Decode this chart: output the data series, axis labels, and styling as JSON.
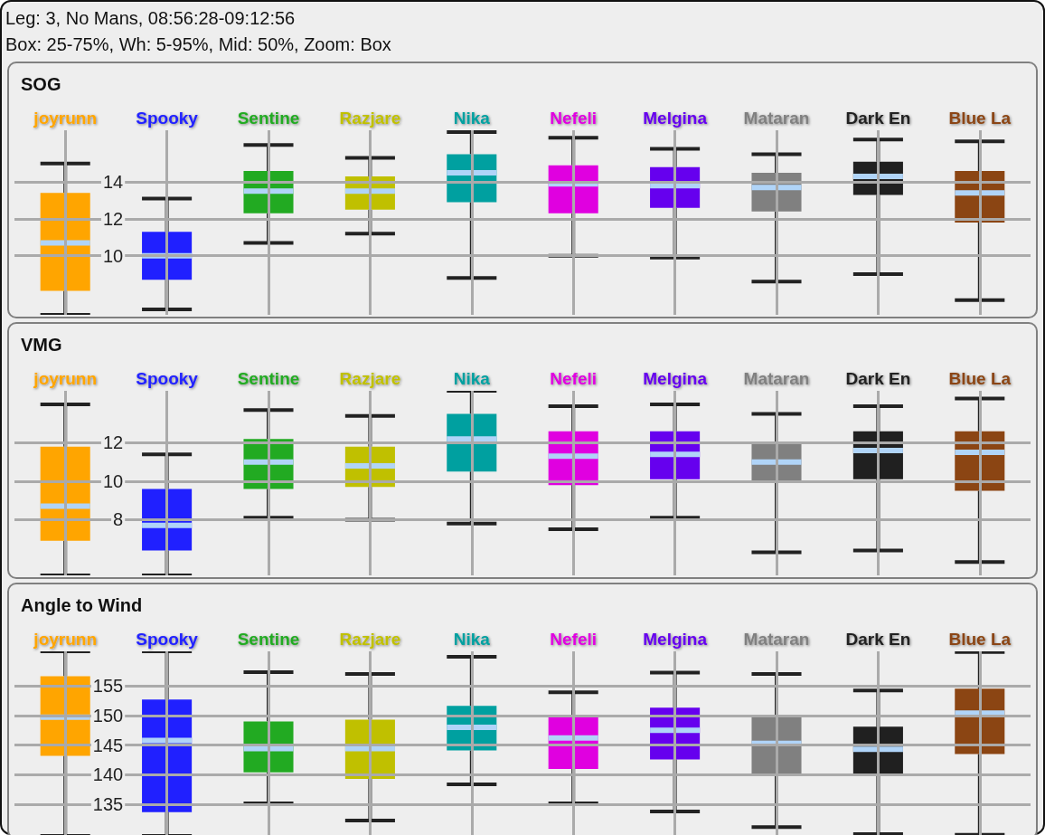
{
  "chart_data": [
    {
      "type": "box",
      "title": "SOG",
      "annotations": [
        "Leg: 3, No Mans, 08:56:28-09:12:56",
        "Box: 25-75%, Wh: 5-95%, Mid: 50%, Zoom: Box"
      ],
      "categories": [
        "joyrunn",
        "Spooky",
        "Sentine",
        "Razjare",
        "Nika",
        "Nefeli",
        "Melgina",
        "Mataran",
        "Dark En",
        "Blue La"
      ],
      "colors": [
        "#ffa500",
        "#2020ff",
        "#22aa22",
        "#c0c000",
        "#00a0a0",
        "#e000e0",
        "#6600ee",
        "#808080",
        "#202020",
        "#8b4513"
      ],
      "boxes": [
        {
          "low": 6.8,
          "q1": 8.1,
          "median": 10.7,
          "q3": 13.4,
          "high": 15.0
        },
        {
          "low": 7.1,
          "q1": 8.7,
          "median": 10.0,
          "q3": 11.3,
          "high": 13.1
        },
        {
          "low": 10.7,
          "q1": 12.3,
          "median": 13.5,
          "q3": 14.6,
          "high": 16.0
        },
        {
          "low": 11.2,
          "q1": 12.5,
          "median": 13.5,
          "q3": 14.3,
          "high": 15.3
        },
        {
          "low": 8.8,
          "q1": 12.9,
          "median": 14.5,
          "q3": 15.5,
          "high": 16.7
        },
        {
          "low": 10.0,
          "q1": 12.3,
          "median": 13.9,
          "q3": 14.9,
          "high": 16.4
        },
        {
          "low": 9.9,
          "q1": 12.6,
          "median": 13.8,
          "q3": 14.8,
          "high": 15.8
        },
        {
          "low": 8.6,
          "q1": 12.4,
          "median": 13.7,
          "q3": 14.5,
          "high": 15.5
        },
        {
          "low": 9.0,
          "q1": 13.3,
          "median": 14.3,
          "q3": 15.1,
          "high": 16.3
        },
        {
          "low": 7.6,
          "q1": 11.8,
          "median": 13.4,
          "q3": 14.6,
          "high": 16.2
        }
      ],
      "ylim": [
        6.8,
        16.8
      ],
      "yticks": [
        10,
        12,
        14
      ],
      "grid": true
    },
    {
      "type": "box",
      "title": "VMG",
      "categories": [
        "joyrunn",
        "Spooky",
        "Sentine",
        "Razjare",
        "Nika",
        "Nefeli",
        "Melgina",
        "Mataran",
        "Dark En",
        "Blue La"
      ],
      "colors": [
        "#ffa500",
        "#2020ff",
        "#22aa22",
        "#c0c000",
        "#00a0a0",
        "#e000e0",
        "#6600ee",
        "#808080",
        "#202020",
        "#8b4513"
      ],
      "boxes": [
        {
          "low": 5.1,
          "q1": 6.9,
          "median": 8.7,
          "q3": 11.8,
          "high": 14.0
        },
        {
          "low": 5.1,
          "q1": 6.4,
          "median": 7.7,
          "q3": 9.6,
          "high": 11.4
        },
        {
          "low": 8.1,
          "q1": 9.6,
          "median": 11.0,
          "q3": 12.2,
          "high": 13.7
        },
        {
          "low": 8.0,
          "q1": 9.7,
          "median": 10.8,
          "q3": 11.8,
          "high": 13.4
        },
        {
          "low": 7.8,
          "q1": 10.5,
          "median": 12.2,
          "q3": 13.5,
          "high": 14.7
        },
        {
          "low": 7.5,
          "q1": 9.8,
          "median": 11.3,
          "q3": 12.6,
          "high": 13.9
        },
        {
          "low": 8.1,
          "q1": 10.1,
          "median": 11.4,
          "q3": 12.6,
          "high": 14.0
        },
        {
          "low": 6.3,
          "q1": 9.9,
          "median": 11.0,
          "q3": 12.0,
          "high": 13.5
        },
        {
          "low": 6.4,
          "q1": 10.1,
          "median": 11.6,
          "q3": 12.6,
          "high": 13.9
        },
        {
          "low": 5.8,
          "q1": 9.5,
          "median": 11.5,
          "q3": 12.6,
          "high": 14.3
        }
      ],
      "ylim": [
        5.1,
        14.7
      ],
      "yticks": [
        8,
        10,
        12
      ],
      "grid": true
    },
    {
      "type": "box",
      "title": "Angle to Wind",
      "categories": [
        "joyrunn",
        "Spooky",
        "Sentine",
        "Razjare",
        "Nika",
        "Nefeli",
        "Melgina",
        "Mataran",
        "Dark En",
        "Blue La"
      ],
      "colors": [
        "#ffa500",
        "#2020ff",
        "#22aa22",
        "#c0c000",
        "#00a0a0",
        "#e000e0",
        "#6600ee",
        "#808080",
        "#202020",
        "#8b4513"
      ],
      "boxes": [
        {
          "low": 129.7,
          "q1": 143.2,
          "median": 149.7,
          "q3": 156.6,
          "high": 160.8
        },
        {
          "low": 129.7,
          "q1": 133.7,
          "median": 145.8,
          "q3": 152.7,
          "high": 160.8
        },
        {
          "low": 135.2,
          "q1": 140.4,
          "median": 144.4,
          "q3": 149.0,
          "high": 157.3
        },
        {
          "low": 132.3,
          "q1": 139.3,
          "median": 144.4,
          "q3": 149.3,
          "high": 157.0
        },
        {
          "low": 138.4,
          "q1": 144.1,
          "median": 148.0,
          "q3": 151.6,
          "high": 159.9
        },
        {
          "low": 135.2,
          "q1": 141.0,
          "median": 146.2,
          "q3": 149.8,
          "high": 153.9
        },
        {
          "low": 133.8,
          "q1": 142.6,
          "median": 147.5,
          "q3": 151.3,
          "high": 157.2
        },
        {
          "low": 131.2,
          "q1": 140.1,
          "median": 145.3,
          "q3": 150.0,
          "high": 157.0
        },
        {
          "low": 130.0,
          "q1": 140.2,
          "median": 144.3,
          "q3": 148.1,
          "high": 154.2
        },
        {
          "low": 129.9,
          "q1": 143.5,
          "median": 150.4,
          "q3": 154.5,
          "high": 160.7
        }
      ],
      "ylim": [
        129.7,
        160.8
      ],
      "yticks": [
        135,
        140,
        145,
        150,
        155
      ],
      "grid": true
    }
  ]
}
